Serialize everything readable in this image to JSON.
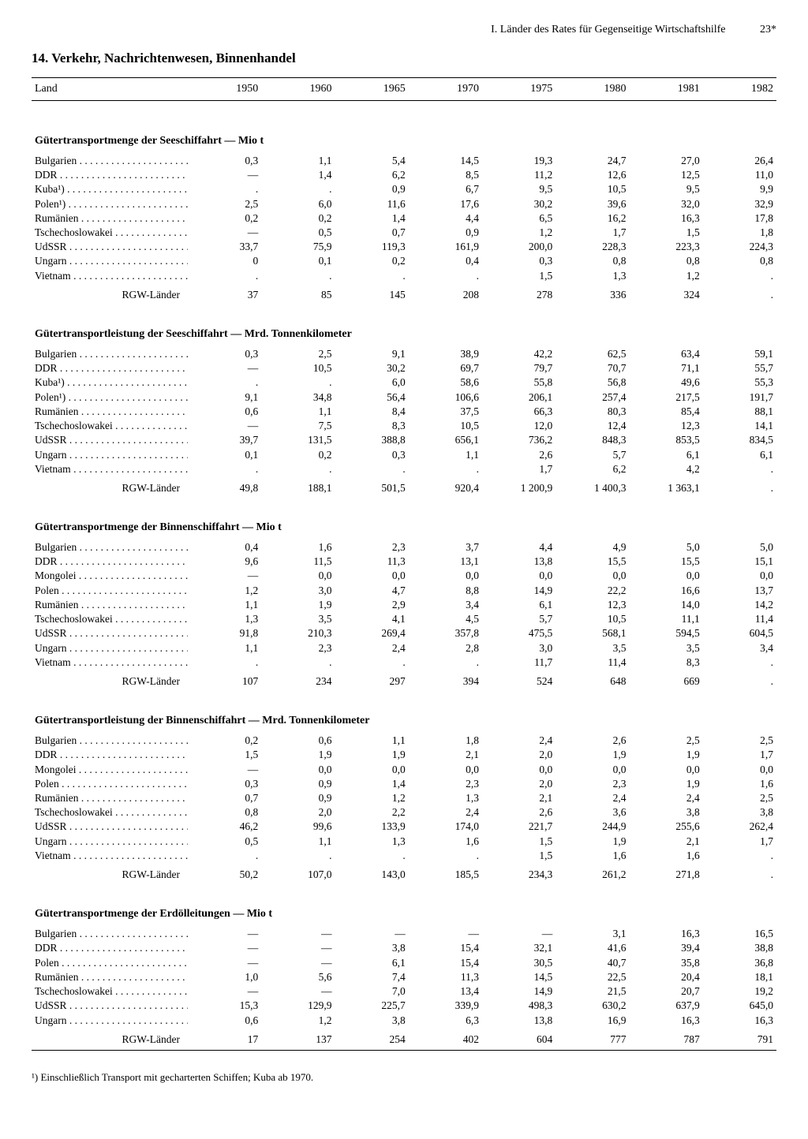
{
  "header": {
    "chapter": "I. Länder des Rates für Gegenseitige Wirtschaftshilfe",
    "page": "23*",
    "section": "14. Verkehr, Nachrichtenwesen, Binnenhandel"
  },
  "columns": {
    "land": "Land",
    "years": [
      "1950",
      "1960",
      "1965",
      "1970",
      "1975",
      "1980",
      "1981",
      "1982"
    ]
  },
  "footnote": "¹) Einschließlich Transport mit gecharterten Schiffen; Kuba ab 1970.",
  "sections": [
    {
      "title": "Gütertransportmenge der Seeschiffahrt — Mio t",
      "rows": [
        {
          "land": "Bulgarien",
          "v": [
            "0,3",
            "1,1",
            "5,4",
            "14,5",
            "19,3",
            "24,7",
            "27,0",
            "26,4"
          ]
        },
        {
          "land": "DDR",
          "v": [
            "—",
            "1,4",
            "6,2",
            "8,5",
            "11,2",
            "12,6",
            "12,5",
            "11,0"
          ]
        },
        {
          "land": "Kuba¹)",
          "v": [
            ".",
            ".",
            "0,9",
            "6,7",
            "9,5",
            "10,5",
            "9,5",
            "9,9"
          ]
        },
        {
          "land": "Polen¹)",
          "v": [
            "2,5",
            "6,0",
            "11,6",
            "17,6",
            "30,2",
            "39,6",
            "32,0",
            "32,9"
          ]
        },
        {
          "land": "Rumänien",
          "v": [
            "0,2",
            "0,2",
            "1,4",
            "4,4",
            "6,5",
            "16,2",
            "16,3",
            "17,8"
          ]
        },
        {
          "land": "Tschechoslowakei",
          "v": [
            "—",
            "0,5",
            "0,7",
            "0,9",
            "1,2",
            "1,7",
            "1,5",
            "1,8"
          ]
        },
        {
          "land": "UdSSR",
          "v": [
            "33,7",
            "75,9",
            "119,3",
            "161,9",
            "200,0",
            "228,3",
            "223,3",
            "224,3"
          ]
        },
        {
          "land": "Ungarn",
          "v": [
            "0",
            "0,1",
            "0,2",
            "0,4",
            "0,3",
            "0,8",
            "0,8",
            "0,8"
          ]
        },
        {
          "land": "Vietnam",
          "v": [
            ".",
            ".",
            ".",
            ".",
            "1,5",
            "1,3",
            "1,2",
            "."
          ]
        }
      ],
      "total": {
        "label": "RGW-Länder",
        "v": [
          "37",
          "85",
          "145",
          "208",
          "278",
          "336",
          "324",
          "."
        ]
      }
    },
    {
      "title": "Gütertransportleistung der Seeschiffahrt — Mrd. Tonnenkilometer",
      "rows": [
        {
          "land": "Bulgarien",
          "v": [
            "0,3",
            "2,5",
            "9,1",
            "38,9",
            "42,2",
            "62,5",
            "63,4",
            "59,1"
          ]
        },
        {
          "land": "DDR",
          "v": [
            "—",
            "10,5",
            "30,2",
            "69,7",
            "79,7",
            "70,7",
            "71,1",
            "55,7"
          ]
        },
        {
          "land": "Kuba¹)",
          "v": [
            ".",
            ".",
            "6,0",
            "58,6",
            "55,8",
            "56,8",
            "49,6",
            "55,3"
          ]
        },
        {
          "land": "Polen¹)",
          "v": [
            "9,1",
            "34,8",
            "56,4",
            "106,6",
            "206,1",
            "257,4",
            "217,5",
            "191,7"
          ]
        },
        {
          "land": "Rumänien",
          "v": [
            "0,6",
            "1,1",
            "8,4",
            "37,5",
            "66,3",
            "80,3",
            "85,4",
            "88,1"
          ]
        },
        {
          "land": "Tschechoslowakei",
          "v": [
            "—",
            "7,5",
            "8,3",
            "10,5",
            "12,0",
            "12,4",
            "12,3",
            "14,1"
          ]
        },
        {
          "land": "UdSSR",
          "v": [
            "39,7",
            "131,5",
            "388,8",
            "656,1",
            "736,2",
            "848,3",
            "853,5",
            "834,5"
          ]
        },
        {
          "land": "Ungarn",
          "v": [
            "0,1",
            "0,2",
            "0,3",
            "1,1",
            "2,6",
            "5,7",
            "6,1",
            "6,1"
          ]
        },
        {
          "land": "Vietnam",
          "v": [
            ".",
            ".",
            ".",
            ".",
            "1,7",
            "6,2",
            "4,2",
            "."
          ]
        }
      ],
      "total": {
        "label": "RGW-Länder",
        "v": [
          "49,8",
          "188,1",
          "501,5",
          "920,4",
          "1 200,9",
          "1 400,3",
          "1 363,1",
          "."
        ]
      }
    },
    {
      "title": "Gütertransportmenge der Binnenschiffahrt — Mio t",
      "rows": [
        {
          "land": "Bulgarien",
          "v": [
            "0,4",
            "1,6",
            "2,3",
            "3,7",
            "4,4",
            "4,9",
            "5,0",
            "5,0"
          ]
        },
        {
          "land": "DDR",
          "v": [
            "9,6",
            "11,5",
            "11,3",
            "13,1",
            "13,8",
            "15,5",
            "15,5",
            "15,1"
          ]
        },
        {
          "land": "Mongolei",
          "v": [
            "—",
            "0,0",
            "0,0",
            "0,0",
            "0,0",
            "0,0",
            "0,0",
            "0,0"
          ]
        },
        {
          "land": "Polen",
          "v": [
            "1,2",
            "3,0",
            "4,7",
            "8,8",
            "14,9",
            "22,2",
            "16,6",
            "13,7"
          ]
        },
        {
          "land": "Rumänien",
          "v": [
            "1,1",
            "1,9",
            "2,9",
            "3,4",
            "6,1",
            "12,3",
            "14,0",
            "14,2"
          ]
        },
        {
          "land": "Tschechoslowakei",
          "v": [
            "1,3",
            "3,5",
            "4,1",
            "4,5",
            "5,7",
            "10,5",
            "11,1",
            "11,4"
          ]
        },
        {
          "land": "UdSSR",
          "v": [
            "91,8",
            "210,3",
            "269,4",
            "357,8",
            "475,5",
            "568,1",
            "594,5",
            "604,5"
          ]
        },
        {
          "land": "Ungarn",
          "v": [
            "1,1",
            "2,3",
            "2,4",
            "2,8",
            "3,0",
            "3,5",
            "3,5",
            "3,4"
          ]
        },
        {
          "land": "Vietnam",
          "v": [
            ".",
            ".",
            ".",
            ".",
            "11,7",
            "11,4",
            "8,3",
            "."
          ]
        }
      ],
      "total": {
        "label": "RGW-Länder",
        "v": [
          "107",
          "234",
          "297",
          "394",
          "524",
          "648",
          "669",
          "."
        ]
      }
    },
    {
      "title": "Gütertransportleistung der Binnenschiffahrt — Mrd. Tonnenkilometer",
      "rows": [
        {
          "land": "Bulgarien",
          "v": [
            "0,2",
            "0,6",
            "1,1",
            "1,8",
            "2,4",
            "2,6",
            "2,5",
            "2,5"
          ]
        },
        {
          "land": "DDR",
          "v": [
            "1,5",
            "1,9",
            "1,9",
            "2,1",
            "2,0",
            "1,9",
            "1,9",
            "1,7"
          ]
        },
        {
          "land": "Mongolei",
          "v": [
            "—",
            "0,0",
            "0,0",
            "0,0",
            "0,0",
            "0,0",
            "0,0",
            "0,0"
          ]
        },
        {
          "land": "Polen",
          "v": [
            "0,3",
            "0,9",
            "1,4",
            "2,3",
            "2,0",
            "2,3",
            "1,9",
            "1,6"
          ]
        },
        {
          "land": "Rumänien",
          "v": [
            "0,7",
            "0,9",
            "1,2",
            "1,3",
            "2,1",
            "2,4",
            "2,4",
            "2,5"
          ]
        },
        {
          "land": "Tschechoslowakei",
          "v": [
            "0,8",
            "2,0",
            "2,2",
            "2,4",
            "2,6",
            "3,6",
            "3,8",
            "3,8"
          ]
        },
        {
          "land": "UdSSR",
          "v": [
            "46,2",
            "99,6",
            "133,9",
            "174,0",
            "221,7",
            "244,9",
            "255,6",
            "262,4"
          ]
        },
        {
          "land": "Ungarn",
          "v": [
            "0,5",
            "1,1",
            "1,3",
            "1,6",
            "1,5",
            "1,9",
            "2,1",
            "1,7"
          ]
        },
        {
          "land": "Vietnam",
          "v": [
            ".",
            ".",
            ".",
            ".",
            "1,5",
            "1,6",
            "1,6",
            "."
          ]
        }
      ],
      "total": {
        "label": "RGW-Länder",
        "v": [
          "50,2",
          "107,0",
          "143,0",
          "185,5",
          "234,3",
          "261,2",
          "271,8",
          "."
        ]
      }
    },
    {
      "title": "Gütertransportmenge der Erdölleitungen — Mio t",
      "rows": [
        {
          "land": "Bulgarien",
          "v": [
            "—",
            "—",
            "—",
            "—",
            "—",
            "3,1",
            "16,3",
            "16,5"
          ]
        },
        {
          "land": "DDR",
          "v": [
            "—",
            "—",
            "3,8",
            "15,4",
            "32,1",
            "41,6",
            "39,4",
            "38,8"
          ]
        },
        {
          "land": "Polen",
          "v": [
            "—",
            "—",
            "6,1",
            "15,4",
            "30,5",
            "40,7",
            "35,8",
            "36,8"
          ]
        },
        {
          "land": "Rumänien",
          "v": [
            "1,0",
            "5,6",
            "7,4",
            "11,3",
            "14,5",
            "22,5",
            "20,4",
            "18,1"
          ]
        },
        {
          "land": "Tschechoslowakei",
          "v": [
            "—",
            "—",
            "7,0",
            "13,4",
            "14,9",
            "21,5",
            "20,7",
            "19,2"
          ]
        },
        {
          "land": "UdSSR",
          "v": [
            "15,3",
            "129,9",
            "225,7",
            "339,9",
            "498,3",
            "630,2",
            "637,9",
            "645,0"
          ]
        },
        {
          "land": "Ungarn",
          "v": [
            "0,6",
            "1,2",
            "3,8",
            "6,3",
            "13,8",
            "16,9",
            "16,3",
            "16,3"
          ]
        }
      ],
      "total": {
        "label": "RGW-Länder",
        "v": [
          "17",
          "137",
          "254",
          "402",
          "604",
          "777",
          "787",
          "791"
        ]
      }
    }
  ]
}
